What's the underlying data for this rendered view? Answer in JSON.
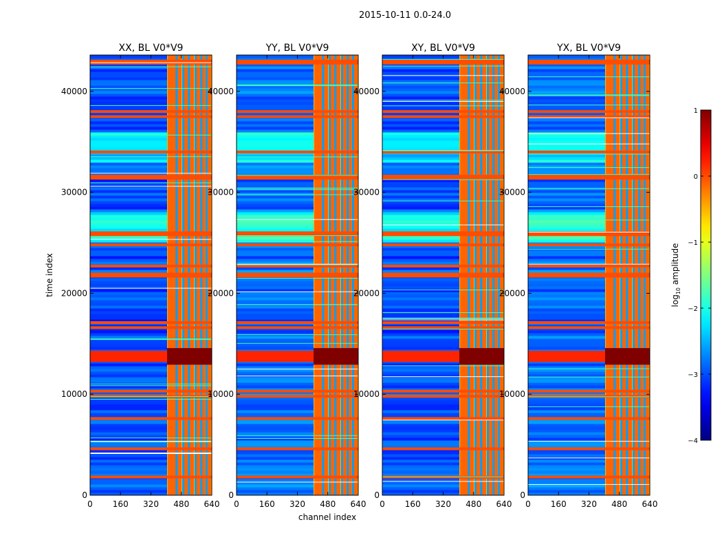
{
  "figure": {
    "suptitle": "2015-10-11 0.0-24.0",
    "xlabel": "channel index",
    "ylabel": "time index"
  },
  "colorbar": {
    "label_prefix": "log",
    "label_sub": "10",
    "label_suffix": " amplitude",
    "ticks": [
      "1",
      "0",
      "−1",
      "−2",
      "−3",
      "−4"
    ],
    "tick_values": [
      1,
      0,
      -1,
      -2,
      -3,
      -4
    ],
    "range": [
      -4,
      1
    ],
    "colormap": "jet"
  },
  "chart_data": {
    "type": "heatmap",
    "title": "2015-10-11 0.0-24.0",
    "xlabel": "channel index",
    "ylabel": "time index",
    "xlim": [
      0,
      640
    ],
    "ylim": [
      0,
      43600
    ],
    "x_ticks": [
      0,
      160,
      320,
      480,
      640
    ],
    "x_tick_labels": [
      "0",
      "160",
      "320",
      "480",
      "640"
    ],
    "y_ticks": [
      0,
      10000,
      20000,
      30000,
      40000
    ],
    "y_tick_labels": [
      "0",
      "10000",
      "20000",
      "30000",
      "40000"
    ],
    "value_label": "log10 amplitude",
    "vmin": -4,
    "vmax": 1,
    "panels": [
      {
        "title": "XX, BL V0*V9",
        "polarization": "XX",
        "baseline": "V0*V9"
      },
      {
        "title": "YY, BL V0*V9",
        "polarization": "YY",
        "baseline": "V0*V9"
      },
      {
        "title": "XY, BL V0*V9",
        "polarization": "XY",
        "baseline": "V0*V9"
      },
      {
        "title": "YX, BL V0*V9",
        "polarization": "YX",
        "baseline": "V0*V9"
      }
    ],
    "features": {
      "background_level": -3,
      "high_band_channels": [
        405,
        640
      ],
      "high_band_level": -0.5,
      "strong_rfi_channels": [
        420,
        440,
        470,
        505,
        535,
        570,
        595,
        625
      ],
      "orange_row_times": [
        43000,
        42800,
        38000,
        37500,
        34000,
        31600,
        31400,
        26000,
        25800,
        24800,
        22700,
        21900,
        21700,
        17100,
        16600,
        10300,
        9800,
        7600,
        4600,
        1800
      ],
      "saturated_time_range": [
        13200,
        14300
      ],
      "saturated_level": 1
    }
  }
}
